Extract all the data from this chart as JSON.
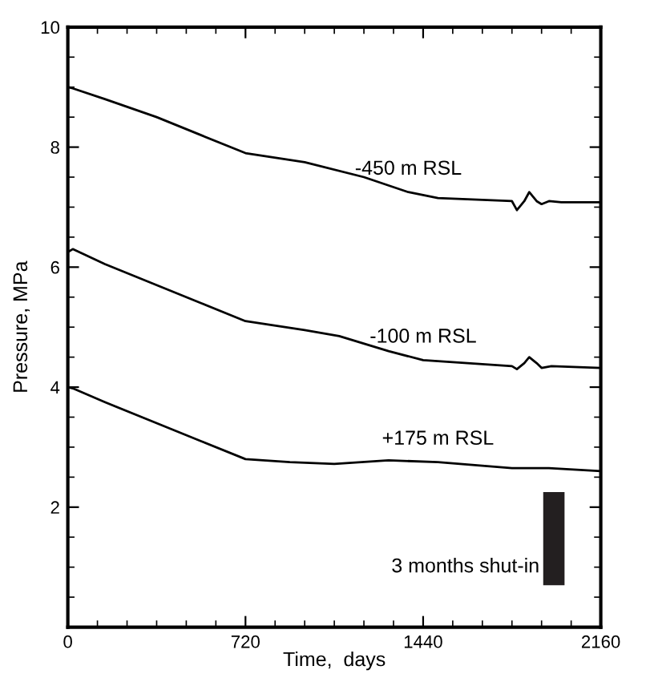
{
  "chart_data": {
    "type": "line",
    "xlabel": "Time,  days",
    "ylabel": "Pressure, MPa",
    "xlim": [
      0,
      2160
    ],
    "ylim": [
      0,
      10
    ],
    "xticks": [
      0,
      {
        "value": 120,
        "label": null
      },
      {
        "value": 240,
        "label": null
      },
      {
        "value": 360,
        "label": null
      },
      {
        "value": 480,
        "label": null
      },
      {
        "value": 600,
        "label": null
      },
      720,
      {
        "value": 840,
        "label": null
      },
      {
        "value": 960,
        "label": null
      },
      {
        "value": 1080,
        "label": null
      },
      {
        "value": 1200,
        "label": null
      },
      {
        "value": 1320,
        "label": null
      },
      1440,
      {
        "value": 1560,
        "label": null
      },
      {
        "value": 1680,
        "label": null
      },
      {
        "value": 1800,
        "label": null
      },
      {
        "value": 1920,
        "label": null
      },
      {
        "value": 2040,
        "label": null
      },
      2160
    ],
    "yticks": [
      {
        "value": 0.5,
        "label": null
      },
      {
        "value": 1,
        "label": null
      },
      {
        "value": 1.5,
        "label": null
      },
      2,
      {
        "value": 2.5,
        "label": null
      },
      {
        "value": 3,
        "label": null
      },
      {
        "value": 3.5,
        "label": null
      },
      4,
      {
        "value": 4.5,
        "label": null
      },
      {
        "value": 5,
        "label": null
      },
      {
        "value": 5.5,
        "label": null
      },
      6,
      {
        "value": 6.5,
        "label": null
      },
      {
        "value": 7,
        "label": null
      },
      {
        "value": 7.5,
        "label": null
      },
      8,
      {
        "value": 8.5,
        "label": null
      },
      {
        "value": 9,
        "label": null
      },
      {
        "value": 9.5,
        "label": null
      },
      10
    ],
    "grid": false,
    "legend": false,
    "marker": "none",
    "line_style": "solid",
    "annotations": [
      "3 months shut-in"
    ],
    "series": [
      {
        "name": "-450 m RSL",
        "color": "#000000",
        "x": [
          0,
          20,
          150,
          360,
          540,
          720,
          960,
          1200,
          1380,
          1500,
          1800,
          1820,
          1850,
          1870,
          1900,
          1920,
          1950,
          2000,
          2160
        ],
        "values": [
          9.0,
          8.98,
          8.8,
          8.5,
          8.2,
          7.9,
          7.75,
          7.5,
          7.25,
          7.15,
          7.1,
          6.95,
          7.1,
          7.25,
          7.1,
          7.05,
          7.1,
          7.08,
          7.08
        ]
      },
      {
        "name": "-100 m RSL",
        "color": "#000000",
        "x": [
          0,
          20,
          150,
          360,
          540,
          720,
          960,
          1100,
          1300,
          1440,
          1800,
          1820,
          1850,
          1870,
          1900,
          1920,
          1960,
          2160
        ],
        "values": [
          6.25,
          6.3,
          6.05,
          5.7,
          5.4,
          5.1,
          4.95,
          4.85,
          4.6,
          4.45,
          4.35,
          4.3,
          4.4,
          4.5,
          4.4,
          4.32,
          4.35,
          4.32
        ]
      },
      {
        "name": "+175 m RSL",
        "color": "#000000",
        "x": [
          0,
          20,
          150,
          360,
          540,
          720,
          900,
          1080,
          1300,
          1500,
          1800,
          1950,
          2160
        ],
        "values": [
          4.0,
          3.98,
          3.75,
          3.4,
          3.1,
          2.8,
          2.75,
          2.72,
          2.78,
          2.75,
          2.65,
          2.65,
          2.6
        ]
      }
    ]
  }
}
